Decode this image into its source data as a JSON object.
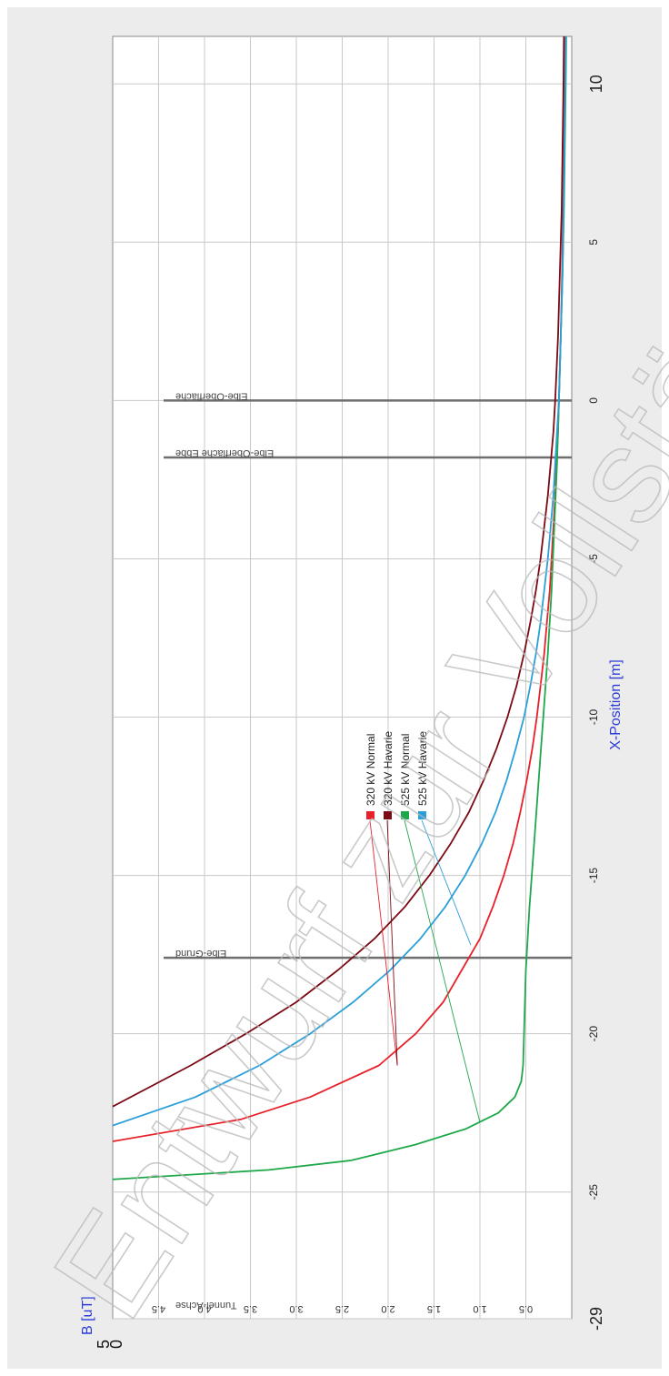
{
  "chart_data": {
    "type": "line",
    "title": "",
    "xlabel": "X-Position [m]",
    "ylabel": "B [uT]",
    "xlim": [
      -29,
      11.5
    ],
    "ylim": [
      0,
      5
    ],
    "x_ticks": [
      -29,
      -25,
      -20,
      -15,
      -10,
      -5,
      0,
      5,
      10
    ],
    "x_tick_labels": [
      "-29",
      "-25",
      "-20",
      "-15",
      "-10",
      "-5",
      "0",
      "5",
      "10"
    ],
    "y_ticks": [
      0.5,
      1.0,
      1.5,
      2.0,
      2.5,
      3.0,
      3.5,
      4.0,
      4.5
    ],
    "y_tick_labels": [
      "0.5",
      "1.0",
      "1.5",
      "2.0",
      "2.5",
      "3.0",
      "3.5",
      "4.0",
      "4.5"
    ],
    "y_axis_end_labels": {
      "min": "0",
      "max": "5"
    },
    "grid": true,
    "legend_position": "center",
    "series": [
      {
        "name": "320 kV Normal",
        "color": "#e8202a",
        "x": [
          -23.4,
          -22.7,
          -22,
          -21,
          -20,
          -19,
          -18,
          -17,
          -16,
          -15,
          -14,
          -13,
          -12,
          -11,
          -10,
          -9,
          -8,
          -7,
          -6,
          -5,
          -4,
          -3,
          -2,
          -1,
          0,
          2,
          4,
          6,
          8,
          10,
          11.5
        ],
        "y": [
          5.0,
          3.6,
          2.85,
          2.1,
          1.7,
          1.4,
          1.2,
          1.0,
          0.86,
          0.74,
          0.64,
          0.56,
          0.49,
          0.43,
          0.38,
          0.34,
          0.3,
          0.27,
          0.24,
          0.22,
          0.2,
          0.18,
          0.165,
          0.15,
          0.14,
          0.12,
          0.105,
          0.095,
          0.085,
          0.075,
          0.07
        ]
      },
      {
        "name": "320 kV Havarie",
        "color": "#7b0a14",
        "x": [
          -22.3,
          -21,
          -20,
          -19,
          -18,
          -17,
          -16,
          -15,
          -14,
          -13,
          -12,
          -11,
          -10,
          -9,
          -8,
          -7,
          -6,
          -5,
          -4,
          -3,
          -2,
          -1,
          0,
          2,
          4,
          6,
          8,
          10,
          11.5
        ],
        "y": [
          5.0,
          4.15,
          3.55,
          3.0,
          2.55,
          2.15,
          1.82,
          1.55,
          1.32,
          1.12,
          0.96,
          0.82,
          0.7,
          0.6,
          0.52,
          0.45,
          0.39,
          0.34,
          0.3,
          0.26,
          0.23,
          0.2,
          0.18,
          0.15,
          0.13,
          0.11,
          0.1,
          0.09,
          0.085
        ]
      },
      {
        "name": "525 kV Normal",
        "color": "#1fa84a",
        "x": [
          -24.6,
          -24.3,
          -24,
          -23.5,
          -23,
          -22.5,
          -22,
          -21.5,
          -21,
          -20,
          -18,
          -16,
          -14,
          -12,
          -10,
          -8,
          -6,
          -4,
          -2,
          0,
          2,
          4,
          6,
          8,
          10,
          11.5
        ],
        "y": [
          5.0,
          3.3,
          2.4,
          1.7,
          1.15,
          0.8,
          0.62,
          0.55,
          0.53,
          0.52,
          0.5,
          0.46,
          0.41,
          0.36,
          0.31,
          0.26,
          0.22,
          0.19,
          0.16,
          0.14,
          0.12,
          0.1,
          0.085,
          0.075,
          0.065,
          0.06
        ]
      },
      {
        "name": "525 kV Havarie",
        "color": "#2a9fd8",
        "x": [
          -22.9,
          -22,
          -21,
          -20,
          -19,
          -18,
          -17,
          -16,
          -15,
          -14,
          -13,
          -12,
          -11,
          -10,
          -9,
          -8,
          -7,
          -6,
          -5,
          -4,
          -3,
          -2,
          -1,
          0,
          2,
          4,
          6,
          8,
          10,
          11.5
        ],
        "y": [
          5.0,
          4.1,
          3.4,
          2.85,
          2.38,
          1.98,
          1.65,
          1.38,
          1.16,
          0.98,
          0.83,
          0.71,
          0.61,
          0.52,
          0.45,
          0.39,
          0.34,
          0.3,
          0.26,
          0.23,
          0.2,
          0.18,
          0.16,
          0.14,
          0.12,
          0.1,
          0.09,
          0.08,
          0.07,
          0.065
        ]
      }
    ],
    "reference_lines": [
      {
        "x": -29,
        "label": "Tunnel-Achse"
      },
      {
        "x": -17.6,
        "label": "Elbe-Grund"
      },
      {
        "x": -1.8,
        "label": "Elbe-Oberfläche Ebbe"
      },
      {
        "x": 0,
        "label": "Elbe-Oberfläche"
      }
    ],
    "legend_leaders": [
      {
        "series": 0,
        "x": -21,
        "y": 1.9
      },
      {
        "series": 1,
        "x": -21,
        "y": 1.9
      },
      {
        "series": 2,
        "x": -22.8,
        "y": 1.0
      },
      {
        "series": 3,
        "x": -17.2,
        "y": 1.1
      }
    ]
  },
  "watermark": {
    "text": "Entwurf zur Vollständig"
  }
}
